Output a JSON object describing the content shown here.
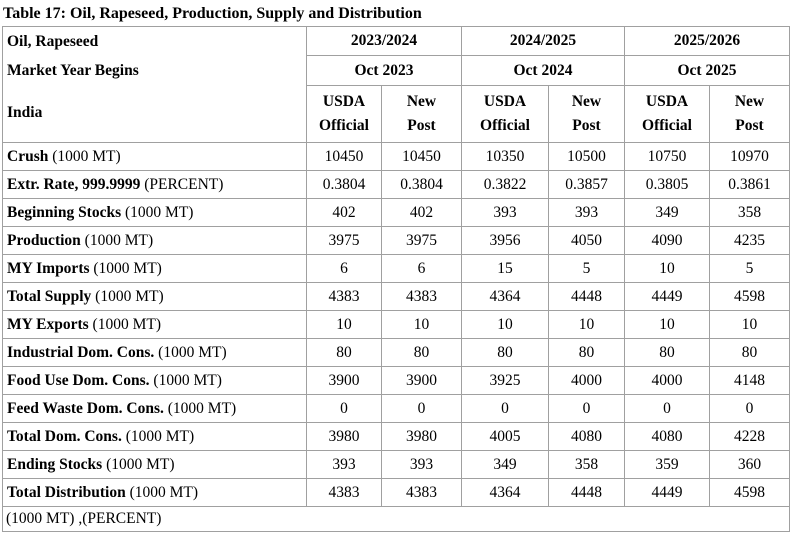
{
  "table": {
    "title": "Table 17: Oil, Rapeseed, Production, Supply and Distribution",
    "header": {
      "commodity": "Oil, Rapeseed",
      "market_year_label": "Market Year Begins",
      "country": "India",
      "years": [
        "2023/2024",
        "2024/2025",
        "2025/2026"
      ],
      "begins": [
        "Oct 2023",
        "Oct 2024",
        "Oct 2025"
      ],
      "source_cols": [
        {
          "l1": "USDA",
          "l2": "Official"
        },
        {
          "l1": "New",
          "l2": "Post"
        },
        {
          "l1": "USDA",
          "l2": "Official"
        },
        {
          "l1": "New",
          "l2": "Post"
        },
        {
          "l1": "USDA",
          "l2": "Official"
        },
        {
          "l1": "New",
          "l2": "Post"
        }
      ]
    },
    "rows": [
      {
        "label": "Crush",
        "unit": "(1000 MT)",
        "values": [
          "10450",
          "10450",
          "10350",
          "10500",
          "10750",
          "10970"
        ]
      },
      {
        "label": "Extr. Rate, 999.9999",
        "unit": "(PERCENT)",
        "values": [
          "0.3804",
          "0.3804",
          "0.3822",
          "0.3857",
          "0.3805",
          "0.3861"
        ]
      },
      {
        "label": "Beginning Stocks",
        "unit": "(1000 MT)",
        "values": [
          "402",
          "402",
          "393",
          "393",
          "349",
          "358"
        ]
      },
      {
        "label": "Production",
        "unit": "(1000 MT)",
        "values": [
          "3975",
          "3975",
          "3956",
          "4050",
          "4090",
          "4235"
        ]
      },
      {
        "label": "MY Imports",
        "unit": "(1000 MT)",
        "values": [
          "6",
          "6",
          "15",
          "5",
          "10",
          "5"
        ]
      },
      {
        "label": "Total Supply",
        "unit": "(1000 MT)",
        "values": [
          "4383",
          "4383",
          "4364",
          "4448",
          "4449",
          "4598"
        ]
      },
      {
        "label": "MY Exports",
        "unit": "(1000 MT)",
        "values": [
          "10",
          "10",
          "10",
          "10",
          "10",
          "10"
        ]
      },
      {
        "label": "Industrial Dom. Cons.",
        "unit": "(1000 MT)",
        "values": [
          "80",
          "80",
          "80",
          "80",
          "80",
          "80"
        ]
      },
      {
        "label": "Food Use Dom. Cons.",
        "unit": "(1000 MT)",
        "values": [
          "3900",
          "3900",
          "3925",
          "4000",
          "4000",
          "4148"
        ]
      },
      {
        "label": "Feed Waste Dom. Cons.",
        "unit": "(1000 MT)",
        "values": [
          "0",
          "0",
          "0",
          "0",
          "0",
          "0"
        ]
      },
      {
        "label": "Total Dom. Cons.",
        "unit": "(1000 MT)",
        "values": [
          "3980",
          "3980",
          "4005",
          "4080",
          "4080",
          "4228"
        ]
      },
      {
        "label": "Ending Stocks",
        "unit": "(1000 MT)",
        "values": [
          "393",
          "393",
          "349",
          "358",
          "359",
          "360"
        ]
      },
      {
        "label": "Total Distribution",
        "unit": "(1000 MT)",
        "values": [
          "4383",
          "4383",
          "4364",
          "4448",
          "4449",
          "4598"
        ]
      }
    ],
    "footer": "(1000 MT) ,(PERCENT)"
  }
}
